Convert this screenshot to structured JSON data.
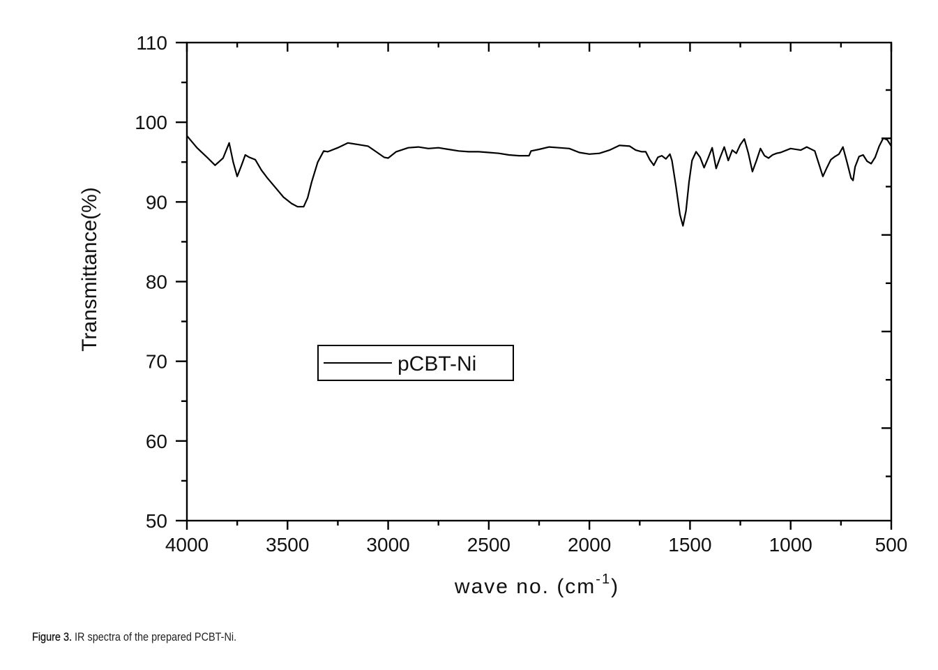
{
  "caption": {
    "label": "Figure 3.",
    "text": " IR spectra of the prepared PCBT-Ni."
  },
  "chart_data": {
    "type": "line",
    "title": "",
    "xlabel": "wave no. (cm",
    "xlabel_sup": "-1",
    "xlabel_close": ")",
    "ylabel": "Transmittance(%)",
    "xlim": [
      4000,
      500
    ],
    "ylim": [
      50,
      110
    ],
    "x_ticks": [
      "4000",
      "3500",
      "3000",
      "2500",
      "2000",
      "1500",
      "1000",
      "500"
    ],
    "y_ticks": [
      "50",
      "60",
      "70",
      "80",
      "90",
      "100",
      "110"
    ],
    "grid": false,
    "legend": {
      "position": "inside-center-left",
      "entries": [
        "pCBT-Ni"
      ]
    },
    "series": [
      {
        "name": "pCBT-Ni",
        "color": "#000000",
        "x": [
          4000,
          3950,
          3900,
          3860,
          3820,
          3790,
          3770,
          3750,
          3730,
          3710,
          3690,
          3660,
          3630,
          3600,
          3560,
          3520,
          3480,
          3450,
          3420,
          3400,
          3380,
          3350,
          3320,
          3300,
          3250,
          3200,
          3150,
          3100,
          3060,
          3020,
          3000,
          2960,
          2900,
          2850,
          2800,
          2750,
          2700,
          2650,
          2600,
          2550,
          2500,
          2450,
          2400,
          2350,
          2300,
          2290,
          2250,
          2200,
          2150,
          2100,
          2050,
          2000,
          1950,
          1900,
          1850,
          1800,
          1770,
          1740,
          1720,
          1700,
          1680,
          1660,
          1640,
          1620,
          1600,
          1590,
          1570,
          1550,
          1535,
          1520,
          1505,
          1490,
          1470,
          1450,
          1430,
          1410,
          1390,
          1370,
          1350,
          1330,
          1310,
          1290,
          1270,
          1250,
          1230,
          1210,
          1190,
          1170,
          1150,
          1130,
          1110,
          1090,
          1070,
          1050,
          1000,
          950,
          920,
          880,
          860,
          840,
          820,
          800,
          780,
          760,
          740,
          720,
          700,
          690,
          680,
          660,
          640,
          620,
          600,
          580,
          560,
          540,
          520,
          500
        ],
        "y": [
          98.3,
          96.8,
          95.6,
          94.6,
          95.5,
          97.4,
          95.0,
          93.2,
          94.5,
          95.9,
          95.6,
          95.3,
          94.0,
          93.0,
          91.8,
          90.6,
          89.8,
          89.4,
          89.4,
          90.5,
          92.5,
          95.0,
          96.4,
          96.3,
          96.8,
          97.4,
          97.2,
          97.0,
          96.3,
          95.6,
          95.5,
          96.3,
          96.8,
          96.9,
          96.7,
          96.8,
          96.6,
          96.4,
          96.3,
          96.3,
          96.2,
          96.1,
          95.9,
          95.8,
          95.8,
          96.4,
          96.6,
          96.9,
          96.8,
          96.7,
          96.2,
          96.0,
          96.1,
          96.5,
          97.1,
          97.0,
          96.5,
          96.3,
          96.3,
          95.3,
          94.6,
          95.6,
          95.8,
          95.4,
          96.0,
          95.2,
          92.0,
          88.4,
          87.0,
          88.9,
          92.5,
          95.2,
          96.3,
          95.6,
          94.3,
          95.5,
          96.8,
          94.2,
          95.6,
          96.9,
          95.2,
          96.5,
          96.1,
          97.2,
          97.9,
          96.1,
          93.8,
          95.2,
          96.7,
          95.8,
          95.5,
          95.9,
          96.1,
          96.2,
          96.7,
          96.5,
          96.9,
          96.4,
          94.8,
          93.2,
          94.3,
          95.3,
          95.7,
          96.0,
          96.9,
          95.0,
          93.0,
          92.7,
          94.4,
          95.7,
          95.9,
          95.1,
          94.8,
          95.6,
          97.0,
          98.0,
          97.8,
          97.0
        ]
      }
    ]
  }
}
